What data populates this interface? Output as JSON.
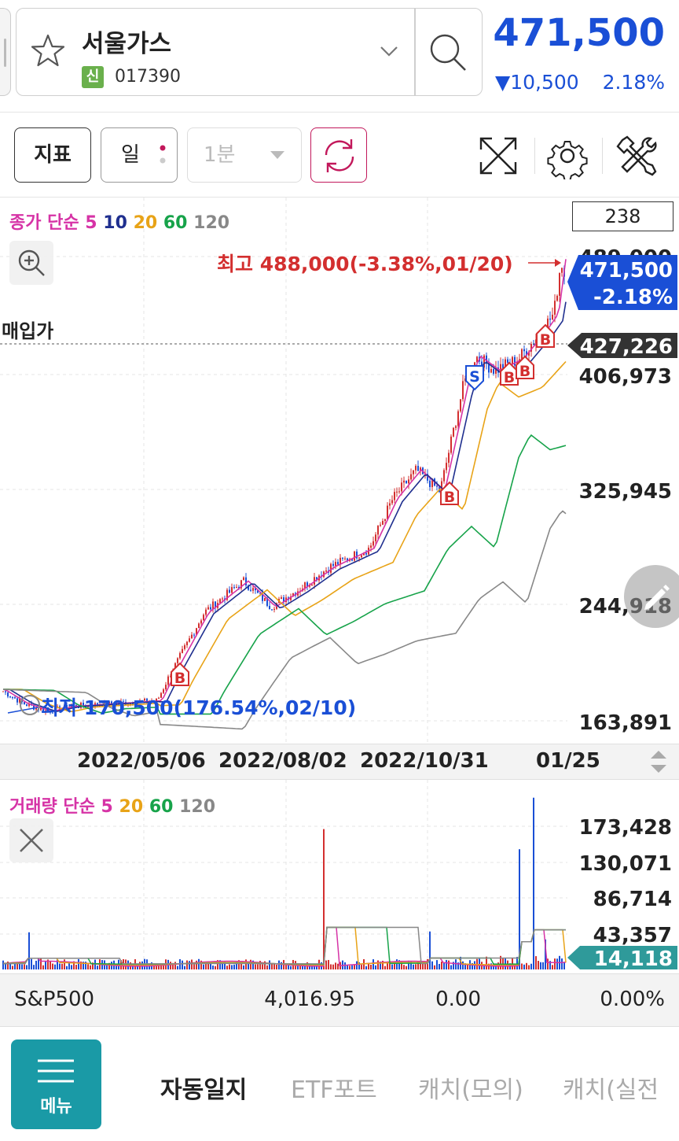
{
  "header": {
    "stock_name": "서울가스",
    "badge": "신",
    "stock_code": "017390",
    "price": "471,500",
    "change": "▼10,500",
    "change_pct": "2.18%"
  },
  "toolbar": {
    "indicator_label": "지표",
    "period_label": "일",
    "minute_label": "1분"
  },
  "price_chart": {
    "legend": {
      "prefix": "종가 단순",
      "periods": [
        "5",
        "10",
        "20",
        "60",
        "120"
      ],
      "colors": [
        "#d633a6",
        "#1f2f8f",
        "#e8a317",
        "#17a34a",
        "#888888"
      ]
    },
    "count": "238",
    "y_ticks": [
      "163,891",
      "244,918",
      "325,945",
      "406,973"
    ],
    "top_tick_partial": "489,000",
    "purchase_label": "매입가",
    "purchase_price": "427,226",
    "current_price": "471,500",
    "current_pct": "-2.18%",
    "high_label": "최고 488,000(-3.38%,01/20)",
    "low_label": "최저 170,500(176.54%,02/10)",
    "dates": [
      "2022/05/06",
      "2022/08/02",
      "2022/10/31",
      "01/25"
    ],
    "signals": [
      "B",
      "B",
      "S",
      "B",
      "B",
      "B"
    ]
  },
  "volume_chart": {
    "legend": {
      "prefix": "거래량 단순",
      "periods": [
        "5",
        "20",
        "60",
        "120"
      ],
      "colors": [
        "#d633a6",
        "#e8a317",
        "#17a34a",
        "#888888"
      ]
    },
    "y_ticks": [
      "173,428",
      "130,071",
      "86,714",
      "43,357"
    ],
    "current": "14,118"
  },
  "index_bar": {
    "name": "S&P500",
    "value": "4,016.95",
    "change": "0.00",
    "pct": "0.00%"
  },
  "bottom_nav": {
    "menu_label": "메뉴",
    "items": [
      "자동일지",
      "ETF포트",
      "캐치(모의)",
      "캐치(실전"
    ]
  },
  "colors": {
    "down_blue": "#1a4fd6",
    "up_red": "#d32f2f",
    "accent_teal": "#1a9aa6",
    "refresh_magenta": "#c2185b"
  },
  "icons": [
    "star-icon",
    "chevron-down-icon",
    "search-icon",
    "refresh-icon",
    "expand-icon",
    "gear-icon",
    "tools-icon",
    "zoom-in-icon",
    "close-icon",
    "pencil-icon",
    "menu-icon",
    "up-down-icon"
  ]
}
